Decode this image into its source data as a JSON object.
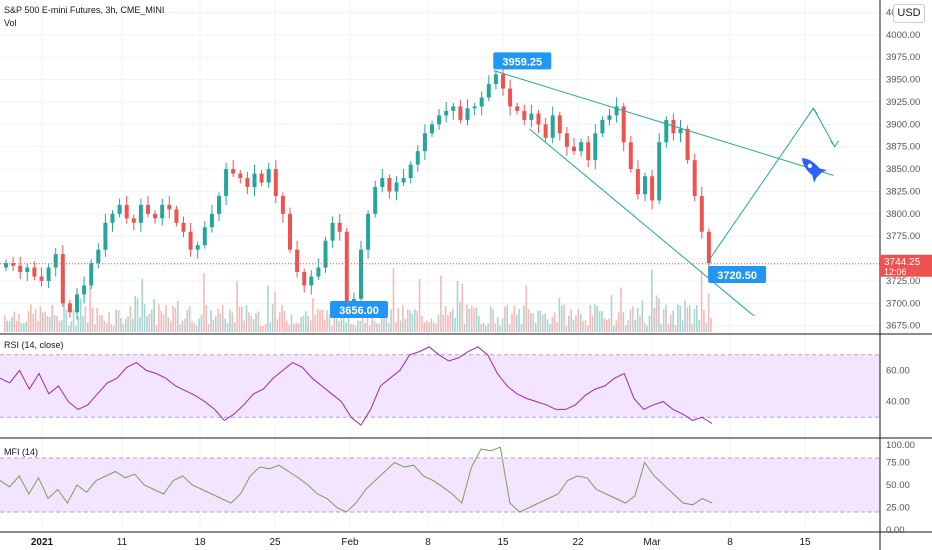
{
  "header": {
    "symbol_line": "S&P 500 E-mini Futures, 3h, CME_MINI",
    "volume_label": "Vol",
    "currency_button": "USD"
  },
  "colors": {
    "up": "#26a69a",
    "down": "#ef5350",
    "callout": "#2196f3",
    "trendline": "#26a69a",
    "rsi_line": "#9c27b0",
    "mfi_line": "#7b9e5a",
    "band_fill": "#f3e5ff",
    "rocket": "#2962ff"
  },
  "icons": {
    "rocket": "rocket-icon"
  },
  "chart_data": [
    {
      "type": "candlestick",
      "title": "S&P 500 E-mini Futures, 3h, CME_MINI",
      "y_ticks": [
        "4025.00",
        "4000.00",
        "3975.00",
        "3950.00",
        "3925.00",
        "3900.00",
        "3875.00",
        "3850.00",
        "3825.00",
        "3800.00",
        "3775.00",
        "3750.00",
        "3725.00",
        "3700.00",
        "3675.00"
      ],
      "ylim": [
        3668,
        4030
      ],
      "x_ticks": [
        "2021",
        "11",
        "18",
        "25",
        "Feb",
        "8",
        "15",
        "22",
        "Mar",
        "8",
        "15"
      ],
      "current_price": "3744.25",
      "countdown": "12:06",
      "callouts": [
        {
          "text": "3959.25",
          "value": 3959.25
        },
        {
          "text": "3656.00",
          "value": 3656.0
        },
        {
          "text": "3720.50",
          "value": 3720.5
        }
      ],
      "close_path": [
        [
          0,
          3745
        ],
        [
          1,
          3742
        ],
        [
          2,
          3735
        ],
        [
          3,
          3740
        ],
        [
          4,
          3730
        ],
        [
          5,
          3725
        ],
        [
          6,
          3740
        ],
        [
          7,
          3755
        ],
        [
          8,
          3700
        ],
        [
          9,
          3690
        ],
        [
          10,
          3710
        ],
        [
          11,
          3720
        ],
        [
          12,
          3745
        ],
        [
          13,
          3760
        ],
        [
          14,
          3790
        ],
        [
          15,
          3800
        ],
        [
          16,
          3810
        ],
        [
          17,
          3795
        ],
        [
          18,
          3790
        ],
        [
          19,
          3810
        ],
        [
          20,
          3800
        ],
        [
          21,
          3795
        ],
        [
          22,
          3810
        ],
        [
          23,
          3805
        ],
        [
          24,
          3790
        ],
        [
          25,
          3780
        ],
        [
          26,
          3760
        ],
        [
          27,
          3765
        ],
        [
          28,
          3785
        ],
        [
          29,
          3800
        ],
        [
          30,
          3820
        ],
        [
          31,
          3850
        ],
        [
          32,
          3845
        ],
        [
          33,
          3840
        ],
        [
          34,
          3830
        ],
        [
          35,
          3845
        ],
        [
          36,
          3835
        ],
        [
          37,
          3850
        ],
        [
          38,
          3820
        ],
        [
          39,
          3800
        ],
        [
          40,
          3760
        ],
        [
          41,
          3735
        ],
        [
          42,
          3720
        ],
        [
          43,
          3730
        ],
        [
          44,
          3740
        ],
        [
          45,
          3770
        ],
        [
          46,
          3790
        ],
        [
          47,
          3780
        ],
        [
          48,
          3700
        ],
        [
          49,
          3705
        ],
        [
          50,
          3760
        ],
        [
          51,
          3800
        ],
        [
          52,
          3830
        ],
        [
          53,
          3840
        ],
        [
          54,
          3825
        ],
        [
          55,
          3835
        ],
        [
          56,
          3840
        ],
        [
          57,
          3855
        ],
        [
          58,
          3870
        ],
        [
          59,
          3890
        ],
        [
          60,
          3900
        ],
        [
          61,
          3910
        ],
        [
          62,
          3915
        ],
        [
          63,
          3920
        ],
        [
          64,
          3905
        ],
        [
          65,
          3918
        ],
        [
          66,
          3920
        ],
        [
          67,
          3930
        ],
        [
          68,
          3945
        ],
        [
          69,
          3956
        ],
        [
          70,
          3940
        ],
        [
          71,
          3920
        ],
        [
          72,
          3915
        ],
        [
          73,
          3905
        ],
        [
          74,
          3912
        ],
        [
          75,
          3900
        ],
        [
          76,
          3885
        ],
        [
          77,
          3910
        ],
        [
          78,
          3890
        ],
        [
          79,
          3875
        ],
        [
          80,
          3870
        ],
        [
          81,
          3880
        ],
        [
          82,
          3860
        ],
        [
          83,
          3890
        ],
        [
          84,
          3905
        ],
        [
          85,
          3910
        ],
        [
          86,
          3920
        ],
        [
          87,
          3880
        ],
        [
          88,
          3850
        ],
        [
          89,
          3822
        ],
        [
          90,
          3842
        ],
        [
          91,
          3815
        ],
        [
          92,
          3880
        ],
        [
          93,
          3905
        ],
        [
          94,
          3890
        ],
        [
          95,
          3895
        ],
        [
          96,
          3860
        ],
        [
          97,
          3820
        ],
        [
          98,
          3780
        ],
        [
          99,
          3745
        ]
      ],
      "projection": [
        [
          99,
          3745
        ],
        [
          114,
          3918
        ],
        [
          117,
          3875
        ]
      ]
    },
    {
      "type": "line",
      "title": "RSI (14, close)",
      "y_ticks": [
        "60.00",
        "40.00"
      ],
      "ylim": [
        18,
        82
      ],
      "band": [
        30,
        70
      ],
      "values": [
        55,
        52,
        60,
        48,
        58,
        45,
        50,
        40,
        35,
        38,
        45,
        52,
        55,
        62,
        65,
        60,
        58,
        55,
        50,
        47,
        44,
        40,
        35,
        28,
        32,
        38,
        45,
        48,
        55,
        60,
        65,
        62,
        55,
        50,
        45,
        40,
        30,
        25,
        35,
        50,
        55,
        60,
        70,
        72,
        75,
        70,
        66,
        68,
        72,
        75,
        70,
        58,
        50,
        45,
        42,
        40,
        38,
        35,
        35,
        38,
        44,
        48,
        50,
        55,
        58,
        42,
        35,
        38,
        40,
        35,
        32,
        28,
        30,
        26
      ]
    },
    {
      "type": "line",
      "title": "MFI (14)",
      "y_ticks": [
        "100.00",
        "75.00",
        "50.00",
        "25.00",
        "0.00"
      ],
      "ylim": [
        0,
        100
      ],
      "band": [
        20,
        80
      ],
      "values": [
        55,
        48,
        60,
        40,
        58,
        35,
        45,
        30,
        50,
        42,
        55,
        60,
        65,
        58,
        62,
        50,
        45,
        40,
        55,
        60,
        50,
        45,
        40,
        35,
        30,
        40,
        60,
        70,
        68,
        72,
        65,
        58,
        50,
        40,
        35,
        25,
        20,
        30,
        45,
        55,
        65,
        75,
        70,
        72,
        60,
        55,
        48,
        40,
        30,
        70,
        90,
        88,
        92,
        30,
        20,
        25,
        30,
        35,
        40,
        55,
        60,
        58,
        45,
        40,
        35,
        30,
        38,
        75,
        60,
        50,
        40,
        30,
        28,
        35,
        30
      ]
    }
  ]
}
